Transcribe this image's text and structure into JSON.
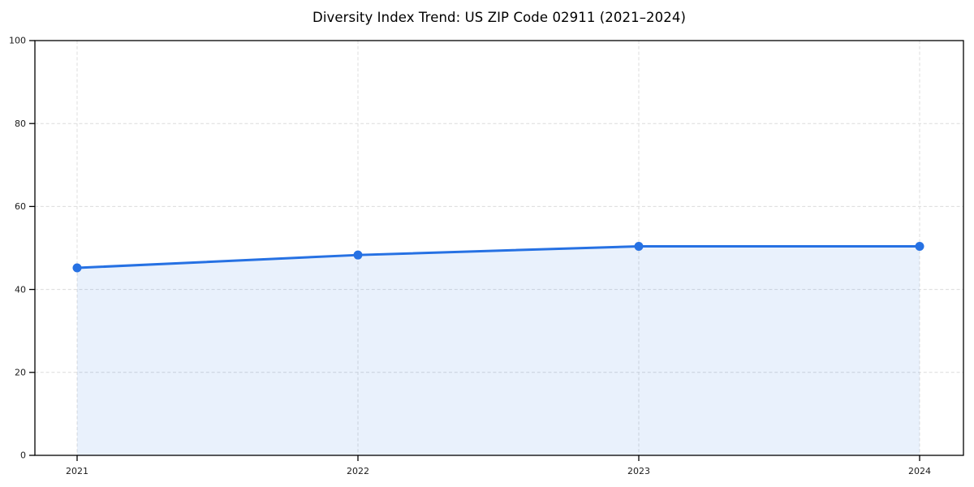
{
  "chart_data": {
    "type": "area",
    "title": "Diversity Index Trend: US ZIP Code 02911 (2021–2024)",
    "categories": [
      "2021",
      "2022",
      "2023",
      "2024"
    ],
    "series": [
      {
        "name": "Diversity Index",
        "values": [
          45.2,
          48.3,
          50.4,
          50.4
        ]
      }
    ],
    "xlabel": "",
    "ylabel": "",
    "ylim": [
      0,
      100
    ],
    "yticks": [
      0,
      20,
      40,
      60,
      80,
      100
    ],
    "grid": true,
    "grid_style": "dashed",
    "legend_position": "none",
    "marker": "circle",
    "colors": {
      "line": "#2671e3",
      "marker": "#2671e3",
      "fill": "#2671e3",
      "fill_opacity": 0.1,
      "grid": "#dcdcdc",
      "spine": "#000000",
      "tick_label": "#1a1a1a",
      "title": "#000000",
      "background": "#ffffff"
    }
  }
}
